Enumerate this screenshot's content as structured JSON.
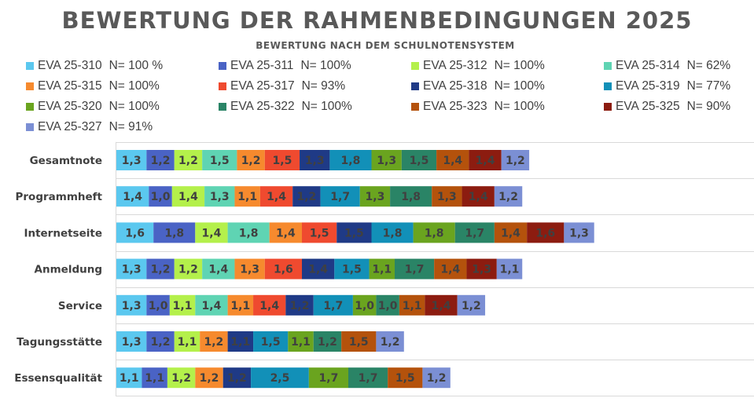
{
  "chart_data": {
    "type": "bar",
    "orientation": "horizontal-stacked",
    "title": "BEWERTUNG DER RAHMENBEDINGUNGEN 2025",
    "subtitle": "BEWERTUNG NACH DEM SCHULNOTENSYSTEM",
    "xlabel": "",
    "ylabel": "",
    "grid": true,
    "legend_position": "top",
    "categories": [
      "Gesamtnote",
      "Programmheft",
      "Internetseite",
      "Anmeldung",
      "Service",
      "Tagungsstätte",
      "Essensqualität"
    ],
    "series": [
      {
        "name": "EVA 25-310",
        "n": "N= 100 %",
        "color": "#5bc8ef",
        "values": [
          1.3,
          1.4,
          1.6,
          1.3,
          1.3,
          1.3,
          1.1
        ],
        "labels": [
          "1,3",
          "1,4",
          "1,6",
          "1,3",
          "1,3",
          "1,3",
          "1,1"
        ]
      },
      {
        "name": "EVA 25-311",
        "n": "N= 100%",
        "color": "#4a63c5",
        "values": [
          1.2,
          1.0,
          1.8,
          1.2,
          1.0,
          1.2,
          1.1
        ],
        "labels": [
          "1,2",
          "1,0",
          "1,8",
          "1,2",
          "1,0",
          "1,2",
          "1,1"
        ]
      },
      {
        "name": "EVA 25-312",
        "n": "N= 100%",
        "color": "#b4f04b",
        "values": [
          1.2,
          1.4,
          1.4,
          1.2,
          1.1,
          1.1,
          1.2
        ],
        "labels": [
          "1,2",
          "1,4",
          "1,4",
          "1,2",
          "1,1",
          "1,1",
          "1,2"
        ]
      },
      {
        "name": "EVA 25-314",
        "n": "N= 62%",
        "color": "#5fd4b3",
        "values": [
          1.5,
          1.3,
          1.8,
          1.4,
          1.4,
          null,
          null
        ],
        "labels": [
          "1,5",
          "1,3",
          "1,8",
          "1,4",
          "1,4",
          "",
          ""
        ]
      },
      {
        "name": "EVA 25-315",
        "n": "N= 100%",
        "color": "#f68a2e",
        "values": [
          1.2,
          1.1,
          1.4,
          1.3,
          1.1,
          1.2,
          1.2
        ],
        "labels": [
          "1,2",
          "1,1",
          "1,4",
          "1,3",
          "1,1",
          "1,2",
          "1,2"
        ]
      },
      {
        "name": "EVA 25-317",
        "n": "N= 93%",
        "color": "#ef4a2f",
        "values": [
          1.5,
          1.4,
          1.5,
          1.6,
          1.4,
          null,
          null
        ],
        "labels": [
          "1,5",
          "1,4",
          "1,5",
          "1,6",
          "1,4",
          "",
          ""
        ]
      },
      {
        "name": "EVA 25-318",
        "n": "N= 100%",
        "color": "#1f3a86",
        "values": [
          1.3,
          1.2,
          1.5,
          1.4,
          1.2,
          1.1,
          1.2
        ],
        "labels": [
          "1,3",
          "1,2",
          "1,5",
          "1,4",
          "1,2",
          "1,1",
          "1,2"
        ]
      },
      {
        "name": "EVA 25-319",
        "n": "N= 77%",
        "color": "#1290b8",
        "values": [
          1.8,
          1.7,
          1.8,
          1.5,
          1.7,
          1.5,
          2.5
        ],
        "labels": [
          "1,8",
          "1,7",
          "1,8",
          "1,5",
          "1,7",
          "1,5",
          "2,5"
        ]
      },
      {
        "name": "EVA 25-320",
        "n": "N= 100%",
        "color": "#6aa41f",
        "values": [
          1.3,
          1.3,
          1.8,
          1.1,
          1.0,
          1.1,
          1.7
        ],
        "labels": [
          "1,3",
          "1,3",
          "1,8",
          "1,1",
          "1,0",
          "1,1",
          "1,7"
        ]
      },
      {
        "name": "EVA 25-322",
        "n": "N= 100%",
        "color": "#2a8466",
        "values": [
          1.5,
          1.8,
          1.7,
          1.7,
          1.0,
          1.2,
          1.7
        ],
        "labels": [
          "1,5",
          "1,8",
          "1,7",
          "1,7",
          "1,0",
          "1,2",
          "1,7"
        ]
      },
      {
        "name": "EVA 25-323",
        "n": "N= 100%",
        "color": "#b4520c",
        "values": [
          1.4,
          1.3,
          1.4,
          1.4,
          1.1,
          1.5,
          1.5
        ],
        "labels": [
          "1,4",
          "1,3",
          "1,4",
          "1,4",
          "1,1",
          "1,5",
          "1,5"
        ]
      },
      {
        "name": "EVA 25-325",
        "n": "N= 90%",
        "color": "#8c1c10",
        "values": [
          1.4,
          1.4,
          1.6,
          1.3,
          1.4,
          null,
          null
        ],
        "labels": [
          "1,4",
          "1,4",
          "1,6",
          "1,3",
          "1,4",
          "",
          ""
        ]
      },
      {
        "name": "EVA 25-327",
        "n": "N= 91%",
        "color": "#7b8fd4",
        "values": [
          1.2,
          1.2,
          1.3,
          1.1,
          1.2,
          1.2,
          1.2
        ],
        "labels": [
          "1,2",
          "1,2",
          "1,3",
          "1,1",
          "1,2",
          "1,2",
          "1,2"
        ]
      }
    ]
  }
}
